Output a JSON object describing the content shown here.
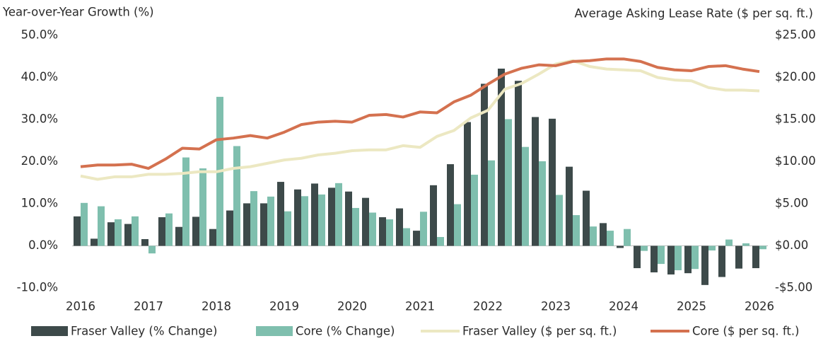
{
  "chart_data": {
    "type": "bar",
    "y_axis_title": "Year-over-Year Growth (%)",
    "y2_axis_title": "Average Asking Lease Rate ($ per sq. ft.)",
    "categories": [
      "2016",
      null,
      null,
      null,
      "2017",
      null,
      null,
      null,
      "2018",
      null,
      null,
      null,
      "2019",
      null,
      null,
      null,
      "2020",
      null,
      null,
      null,
      "2021",
      null,
      null,
      null,
      "2022",
      null,
      null,
      null,
      "2023",
      null,
      null,
      null,
      "2024",
      null,
      null,
      null,
      "2025",
      null,
      null,
      null,
      "2026"
    ],
    "series": [
      {
        "name": "Fraser Valley (% Change)",
        "type": "bar",
        "color": "#3d4a4a",
        "values": [
          7.0,
          1.7,
          5.6,
          5.2,
          1.6,
          6.8,
          4.5,
          6.9,
          4.0,
          8.4,
          10.1,
          10.1,
          15.2,
          13.4,
          14.8,
          13.8,
          12.9,
          11.4,
          6.8,
          8.9,
          3.6,
          14.4,
          19.4,
          29.4,
          38.5,
          42.1,
          39.2,
          30.6,
          30.2,
          18.8,
          13.1,
          5.4,
          -0.5,
          -5.3,
          -6.3,
          -6.8,
          -6.5,
          -9.3,
          -7.4,
          -5.4,
          -5.3
        ]
      },
      {
        "name": "Core (% Change)",
        "type": "bar",
        "color": "#7fbfae",
        "values": [
          10.2,
          9.4,
          6.3,
          7.0,
          -1.8,
          7.7,
          21.0,
          18.4,
          35.4,
          23.7,
          13.0,
          11.7,
          8.2,
          11.8,
          12.2,
          14.9,
          9.0,
          7.9,
          6.3,
          4.2,
          8.1,
          2.1,
          9.9,
          16.9,
          20.3,
          30.1,
          23.5,
          20.1,
          12.1,
          7.3,
          4.6,
          3.6,
          4.0,
          -1.2,
          -4.3,
          -5.8,
          -5.5,
          -1.1,
          1.5,
          0.6,
          -0.8
        ]
      },
      {
        "name": "Fraser Valley ($ per sq. ft.)",
        "type": "line",
        "axis": "y2",
        "color": "#ece8c2",
        "values": [
          8.3,
          7.9,
          8.2,
          8.2,
          8.5,
          8.5,
          8.6,
          8.8,
          8.8,
          9.2,
          9.4,
          9.8,
          10.2,
          10.4,
          10.8,
          11.0,
          11.3,
          11.4,
          11.4,
          11.9,
          11.7,
          13.0,
          13.7,
          15.2,
          16.1,
          18.6,
          19.3,
          20.4,
          21.6,
          22.0,
          21.3,
          21.0,
          20.9,
          20.8,
          20.0,
          19.7,
          19.6,
          18.8,
          18.5,
          18.5,
          18.4
        ]
      },
      {
        "name": "Core ($ per sq. ft.)",
        "type": "line",
        "axis": "y2",
        "color": "#d4714f",
        "values": [
          9.4,
          9.6,
          9.6,
          9.7,
          9.2,
          10.3,
          11.6,
          11.5,
          12.6,
          12.8,
          13.1,
          12.8,
          13.5,
          14.4,
          14.7,
          14.8,
          14.7,
          15.5,
          15.6,
          15.3,
          15.9,
          15.8,
          17.1,
          17.9,
          19.2,
          20.4,
          21.1,
          21.5,
          21.4,
          21.9,
          22.0,
          22.2,
          22.2,
          21.9,
          21.2,
          20.9,
          20.8,
          21.3,
          21.4,
          21.0,
          20.7
        ]
      }
    ],
    "ylim": [
      -10,
      50
    ],
    "yticks": [
      {
        "value": 50,
        "label": "50.0%"
      },
      {
        "value": 40,
        "label": "40.0%"
      },
      {
        "value": 30,
        "label": "30.0%"
      },
      {
        "value": 20,
        "label": "20.0%"
      },
      {
        "value": 10,
        "label": "10.0%"
      },
      {
        "value": 0,
        "label": "0.0%"
      },
      {
        "value": -10,
        "label": "-10.0%"
      }
    ],
    "y2lim": [
      -5,
      25
    ],
    "y2ticks": [
      {
        "value": 25,
        "label": "$25.00"
      },
      {
        "value": 20,
        "label": "$20.00"
      },
      {
        "value": 15,
        "label": "$15.00"
      },
      {
        "value": 10,
        "label": "$10.00"
      },
      {
        "value": 5,
        "label": "$5.00"
      },
      {
        "value": 0,
        "label": "$0.00"
      },
      {
        "value": -5,
        "label": "-$5.00"
      }
    ],
    "grid": false,
    "legend": "bottom"
  }
}
